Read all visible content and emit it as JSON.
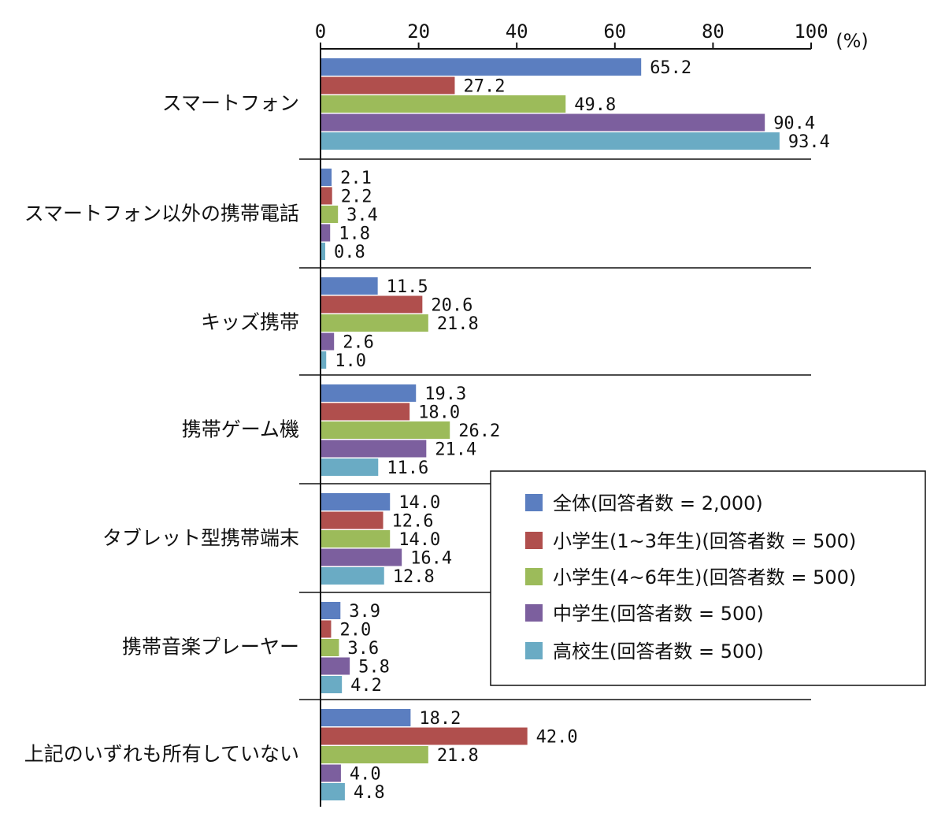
{
  "chart_data": {
    "type": "bar",
    "orientation": "horizontal",
    "unit_label": "(%)",
    "xlim": [
      0,
      100
    ],
    "x_ticks": [
      "0",
      "20",
      "40",
      "60",
      "80",
      "100"
    ],
    "categories": [
      "スマートフォン",
      "スマートフォン以外の携帯電話",
      "キッズ携帯",
      "携帯ゲーム機",
      "タブレット型携帯端末",
      "携帯音楽プレーヤー",
      "上記のいずれも所有していない"
    ],
    "series": [
      {
        "name": "全体(回答者数 = 2,000)",
        "color": "#5b7ec0",
        "values": [
          65.2,
          2.1,
          11.5,
          19.3,
          14.0,
          3.9,
          18.2
        ],
        "labels": [
          "65.2",
          "2.1",
          "11.5",
          "19.3",
          "14.0",
          "3.9",
          "18.2"
        ]
      },
      {
        "name": "小学生(1~3年生)(回答者数 = 500)",
        "color": "#b04f4d",
        "values": [
          27.2,
          2.2,
          20.6,
          18.0,
          12.6,
          2.0,
          42.0
        ],
        "labels": [
          "27.2",
          "2.2",
          "20.6",
          "18.0",
          "12.6",
          "2.0",
          "42.0"
        ]
      },
      {
        "name": "小学生(4~6年生)(回答者数 = 500)",
        "color": "#9cbb5a",
        "values": [
          49.8,
          3.4,
          21.8,
          26.2,
          14.0,
          3.6,
          21.8
        ],
        "labels": [
          "49.8",
          "3.4",
          "21.8",
          "26.2",
          "14.0",
          "3.6",
          "21.8"
        ]
      },
      {
        "name": "中学生(回答者数 = 500)",
        "color": "#7c5f9e",
        "values": [
          90.4,
          1.8,
          2.6,
          21.4,
          16.4,
          5.8,
          4.0
        ],
        "labels": [
          "90.4",
          "1.8",
          "2.6",
          "21.4",
          "16.4",
          "5.8",
          "4.0"
        ]
      },
      {
        "name": "高校生(回答者数 = 500)",
        "color": "#6aabc4",
        "values": [
          93.4,
          0.8,
          1.0,
          11.6,
          12.8,
          4.2,
          4.8
        ],
        "labels": [
          "93.4",
          "0.8",
          "1.0",
          "11.6",
          "12.8",
          "4.2",
          "4.8"
        ]
      }
    ],
    "legend_position": "lower-right",
    "grid": false
  }
}
